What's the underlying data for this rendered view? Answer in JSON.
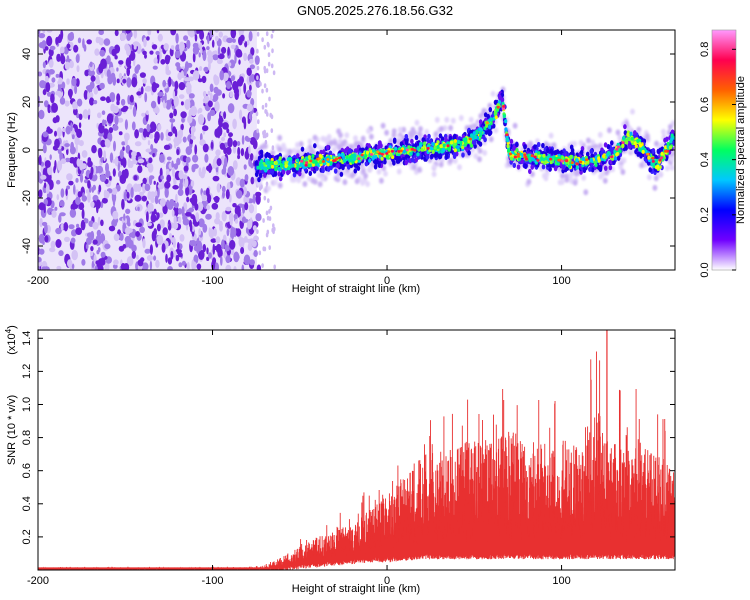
{
  "title": "GN05.2025.276.18.56.G32",
  "chart_data": [
    {
      "type": "heatmap",
      "name": "spectrogram",
      "xlabel": "Height of straight line (km)",
      "ylabel": "Frequency (Hz)",
      "xlim": [
        -200,
        165
      ],
      "ylim": [
        -50,
        50
      ],
      "xticks": [
        -200,
        -100,
        0,
        100
      ],
      "xtick_labels": [
        "-200",
        "-100",
        "0",
        "100"
      ],
      "yticks": [
        -40,
        -20,
        0,
        20,
        40
      ],
      "ytick_labels": [
        "-40",
        "-20",
        "0",
        "20",
        "40"
      ],
      "colorbar": {
        "label": "Normalized spectral amplitude",
        "range": [
          0,
          0.87
        ],
        "ticks": [
          0.0,
          0.2,
          0.4,
          0.6,
          0.8
        ],
        "tick_labels": [
          "0.0",
          "0.2",
          "0.4",
          "0.6",
          "0.8"
        ],
        "colors": [
          "#ffffff",
          "#7000ff",
          "#0000ff",
          "#00c8ff",
          "#00ff60",
          "#ffff00",
          "#ff6000",
          "#ff0050",
          "#ff99ff"
        ]
      },
      "noise_region_x": [
        -200,
        -70
      ],
      "ridge": {
        "x": [
          -75,
          -60,
          -45,
          -30,
          -15,
          0,
          15,
          30,
          45,
          55,
          62,
          66,
          70,
          80,
          95,
          110,
          120,
          130,
          138,
          145,
          155,
          165
        ],
        "y": [
          -7,
          -6,
          -5,
          -4,
          -3,
          -1,
          0,
          1,
          3,
          8,
          15,
          22,
          -2,
          -3,
          -4,
          -5,
          -4,
          -2,
          6,
          2,
          -6,
          5
        ]
      }
    },
    {
      "type": "line",
      "name": "snr",
      "xlabel": "Height of straight line (km)",
      "ylabel": "SNR (10 * v/v)",
      "y_scale_label": "(x10",
      "y_scale_exp": "4",
      "xlim": [
        -200,
        165
      ],
      "ylim": [
        0,
        1.45
      ],
      "xticks": [
        -200,
        -100,
        0,
        100
      ],
      "xtick_labels": [
        "-200",
        "-100",
        "0",
        "100"
      ],
      "yticks": [
        0.2,
        0.4,
        0.6,
        0.8,
        1.0,
        1.2,
        1.4
      ],
      "ytick_labels": [
        "0.2",
        "0.4",
        "0.6",
        "0.8",
        "1.0",
        "1.2",
        "1.4"
      ],
      "color": "#e83030",
      "envelope": {
        "x": [
          -200,
          -80,
          -70,
          -60,
          -50,
          -40,
          -30,
          -20,
          -10,
          0,
          10,
          20,
          30,
          40,
          50,
          60,
          70,
          80,
          90,
          100,
          110,
          120,
          130,
          140,
          150,
          165
        ],
        "lower": [
          0.0,
          0.0,
          0.0,
          0.0,
          0.02,
          0.03,
          0.04,
          0.05,
          0.06,
          0.06,
          0.07,
          0.08,
          0.08,
          0.08,
          0.08,
          0.08,
          0.08,
          0.08,
          0.08,
          0.08,
          0.08,
          0.08,
          0.08,
          0.08,
          0.08,
          0.08
        ],
        "upper": [
          0.02,
          0.02,
          0.03,
          0.12,
          0.2,
          0.28,
          0.33,
          0.38,
          0.52,
          0.65,
          0.82,
          0.98,
          1.05,
          1.1,
          1.15,
          1.12,
          1.2,
          1.18,
          1.1,
          1.2,
          1.12,
          1.45,
          1.16,
          1.2,
          1.06,
          0.85
        ]
      },
      "peak": {
        "x": 126,
        "y": 1.45
      }
    }
  ]
}
